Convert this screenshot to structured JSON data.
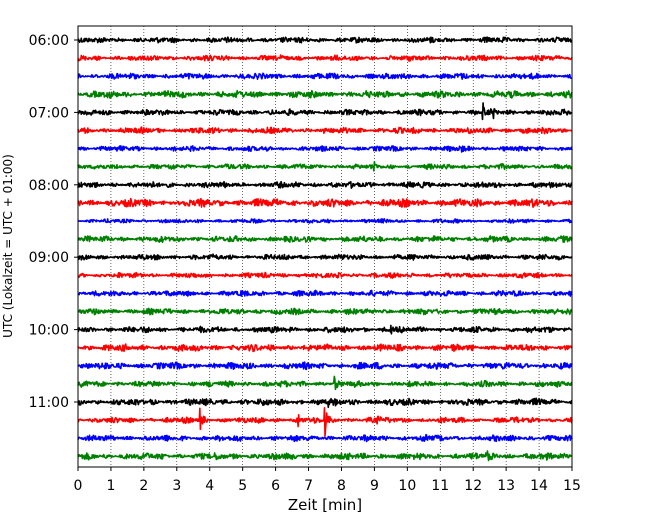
{
  "chart_data": {
    "type": "line",
    "xlabel": "Zeit  [min]",
    "ylabel": "UTC (Lokalzeit = UTC + 01:00)",
    "xlim": [
      0,
      15
    ],
    "x_ticks": [
      0,
      1,
      2,
      3,
      4,
      5,
      6,
      7,
      8,
      9,
      10,
      11,
      12,
      13,
      14,
      15
    ],
    "x_tick_labels": [
      "0",
      "1",
      "2",
      "3",
      "4",
      "5",
      "6",
      "7",
      "8",
      "9",
      "10",
      "11",
      "12",
      "13",
      "14",
      "15"
    ],
    "y_tick_labels": [
      "06:00",
      "07:00",
      "08:00",
      "09:00",
      "10:00",
      "11:00"
    ],
    "trace_interval_minutes": 15,
    "grid": "vertical dotted at each minute",
    "traces": [
      {
        "start": "06:00",
        "color": "#000000",
        "amplitude": 0.28,
        "events": []
      },
      {
        "start": "06:15",
        "color": "#ff0000",
        "amplitude": 0.28,
        "events": []
      },
      {
        "start": "06:30",
        "color": "#0000ff",
        "amplitude": 0.3,
        "events": []
      },
      {
        "start": "06:45",
        "color": "#008000",
        "amplitude": 0.35,
        "events": []
      },
      {
        "start": "07:00",
        "color": "#000000",
        "amplitude": 0.3,
        "events": [
          {
            "t": 12.3,
            "amp": 1.0
          },
          {
            "t": 12.6,
            "amp": 0.8
          }
        ]
      },
      {
        "start": "07:15",
        "color": "#ff0000",
        "amplitude": 0.3,
        "events": []
      },
      {
        "start": "07:30",
        "color": "#0000ff",
        "amplitude": 0.26,
        "events": [
          {
            "t": 11.6,
            "amp": 0.6
          }
        ]
      },
      {
        "start": "07:45",
        "color": "#008000",
        "amplitude": 0.26,
        "events": [
          {
            "t": 9.0,
            "amp": 0.5
          }
        ]
      },
      {
        "start": "08:00",
        "color": "#000000",
        "amplitude": 0.3,
        "events": []
      },
      {
        "start": "08:15",
        "color": "#ff0000",
        "amplitude": 0.4,
        "events": []
      },
      {
        "start": "08:30",
        "color": "#0000ff",
        "amplitude": 0.2,
        "events": []
      },
      {
        "start": "08:45",
        "color": "#008000",
        "amplitude": 0.3,
        "events": []
      },
      {
        "start": "09:00",
        "color": "#000000",
        "amplitude": 0.28,
        "events": []
      },
      {
        "start": "09:15",
        "color": "#ff0000",
        "amplitude": 0.26,
        "events": []
      },
      {
        "start": "09:30",
        "color": "#0000ff",
        "amplitude": 0.28,
        "events": []
      },
      {
        "start": "09:45",
        "color": "#008000",
        "amplitude": 0.3,
        "events": []
      },
      {
        "start": "10:00",
        "color": "#000000",
        "amplitude": 0.3,
        "events": [
          {
            "t": 9.5,
            "amp": 0.6
          }
        ]
      },
      {
        "start": "10:15",
        "color": "#ff0000",
        "amplitude": 0.34,
        "events": []
      },
      {
        "start": "10:30",
        "color": "#0000ff",
        "amplitude": 0.34,
        "events": []
      },
      {
        "start": "10:45",
        "color": "#008000",
        "amplitude": 0.3,
        "events": [
          {
            "t": 7.8,
            "amp": 0.8
          }
        ]
      },
      {
        "start": "11:00",
        "color": "#000000",
        "amplitude": 0.34,
        "events": [
          {
            "t": 7.6,
            "amp": 0.7
          }
        ]
      },
      {
        "start": "11:15",
        "color": "#ff0000",
        "amplitude": 0.28,
        "events": [
          {
            "t": 3.7,
            "amp": 1.6
          },
          {
            "t": 6.7,
            "amp": 0.6
          },
          {
            "t": 7.5,
            "amp": 1.9
          },
          {
            "t": 9.1,
            "amp": 0.6
          }
        ]
      },
      {
        "start": "11:30",
        "color": "#0000ff",
        "amplitude": 0.3,
        "events": [
          {
            "t": 10.5,
            "amp": 0.5
          }
        ]
      },
      {
        "start": "11:45",
        "color": "#008000",
        "amplitude": 0.34,
        "events": [
          {
            "t": 12.4,
            "amp": 0.5
          }
        ]
      }
    ]
  }
}
